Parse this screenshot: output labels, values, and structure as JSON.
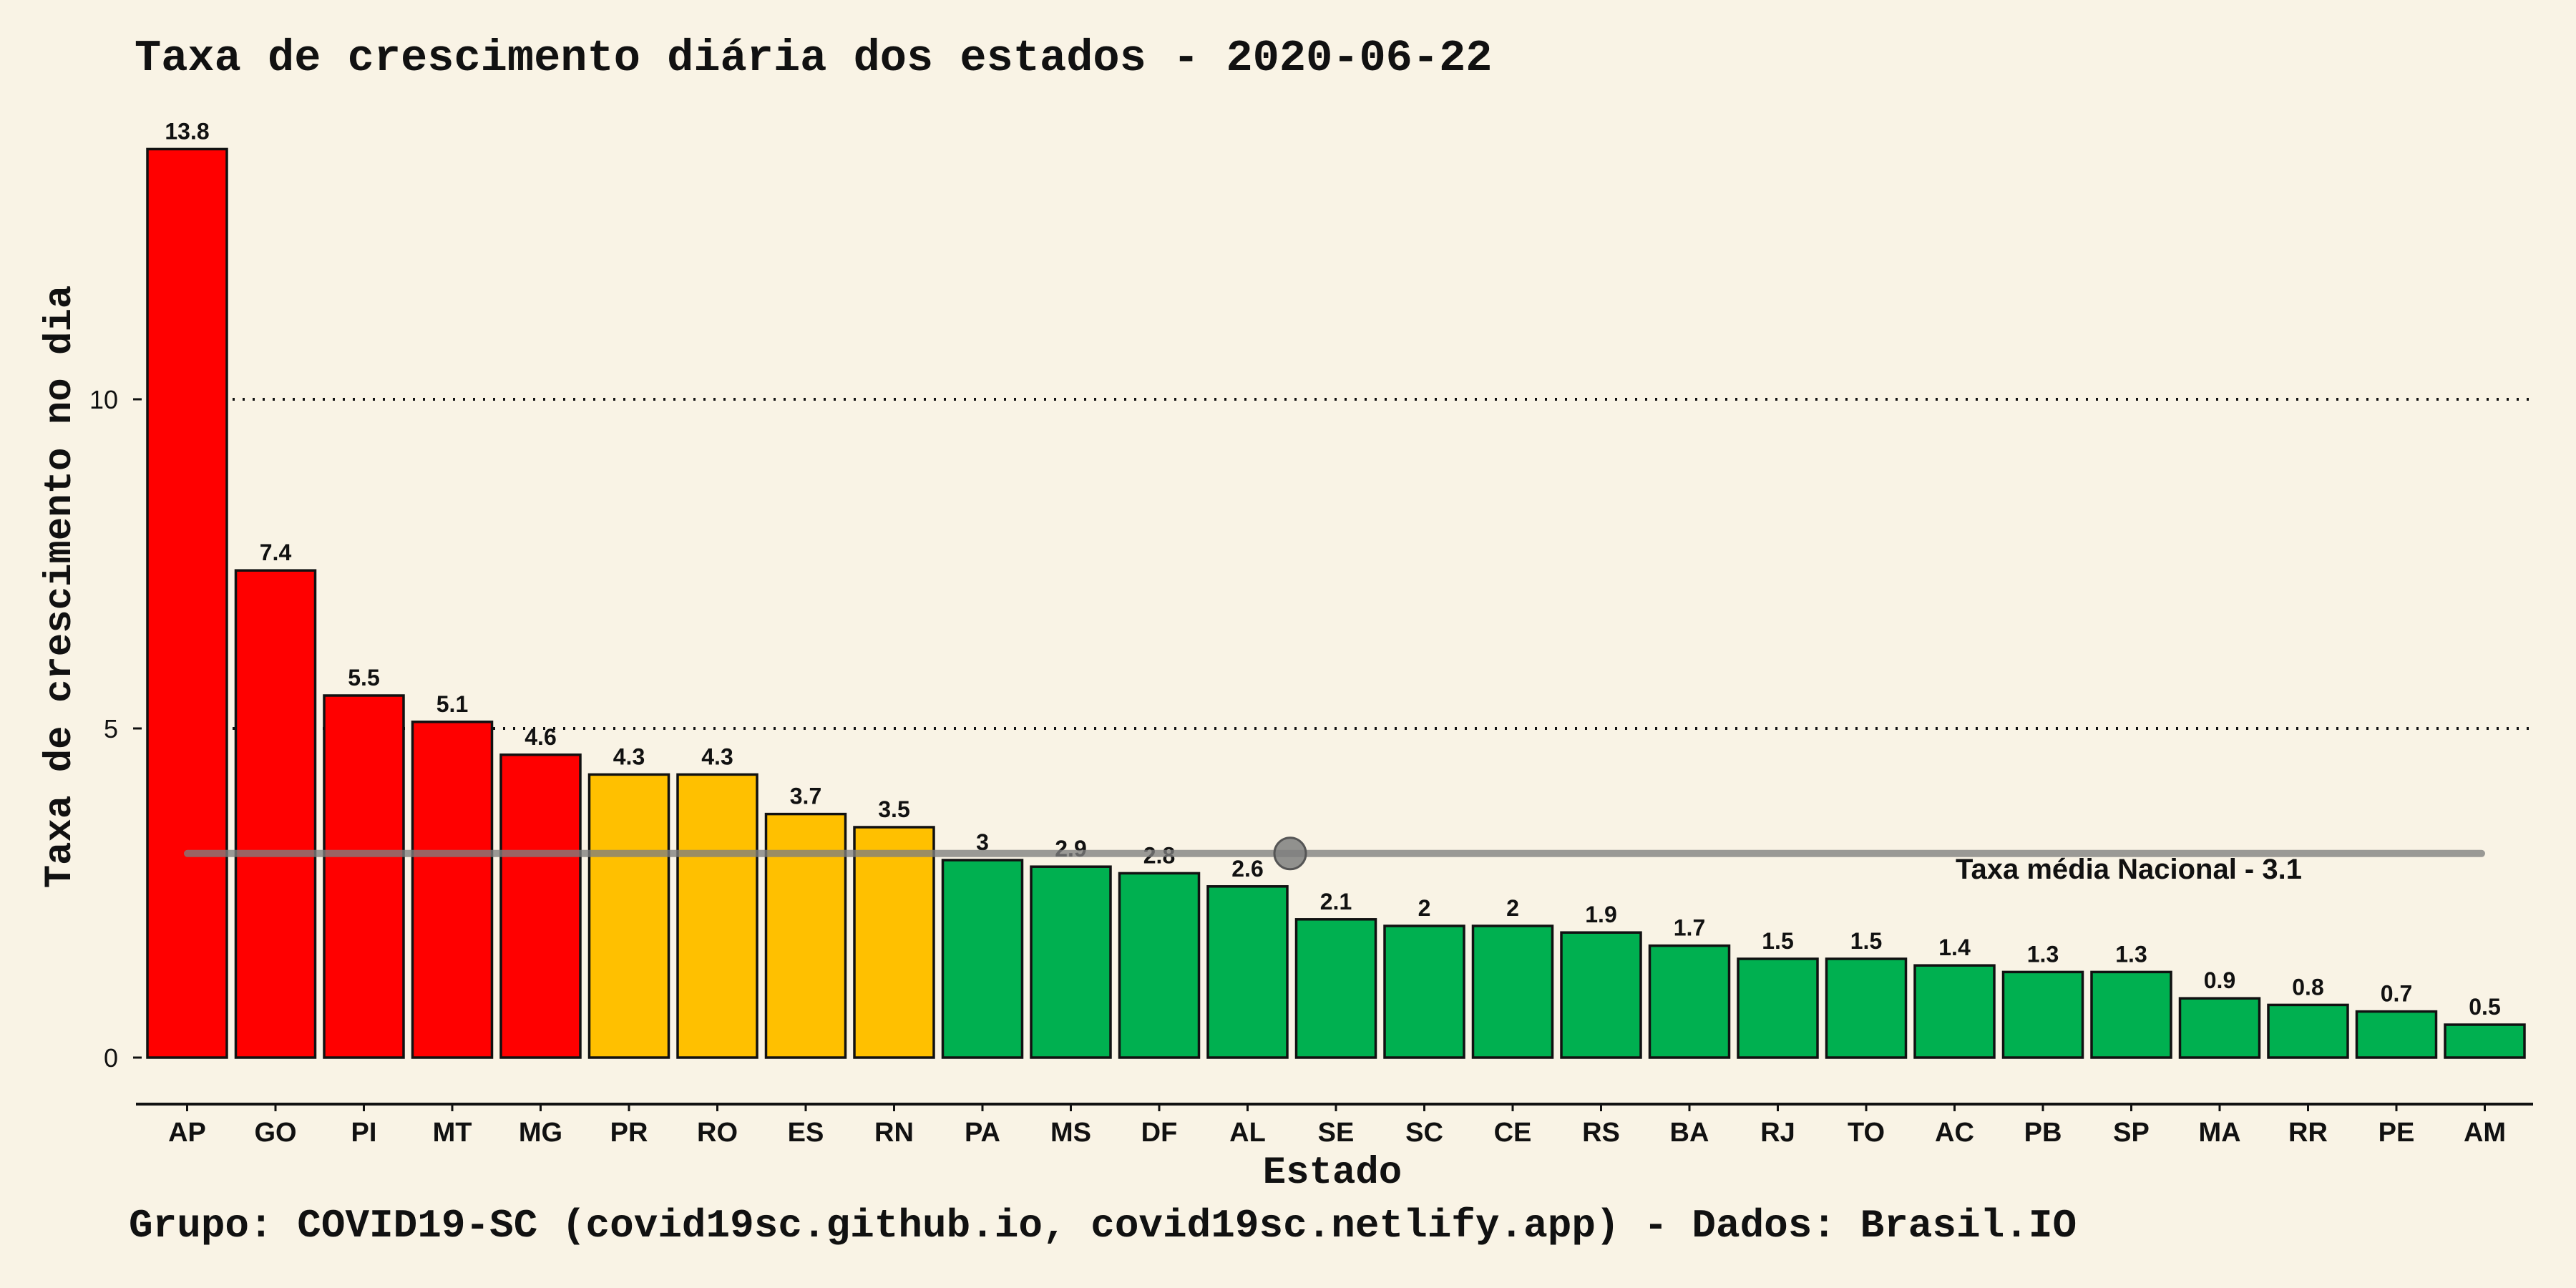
{
  "chart_data": {
    "type": "bar",
    "title": "Taxa de crescimento diária dos estados - 2020-06-22",
    "xlabel": "Estado",
    "ylabel": "Taxa de crescimento no dia",
    "ylim": [
      0,
      14
    ],
    "yticks": [
      0,
      5,
      10
    ],
    "grid": "horizontal-dotted",
    "categories": [
      "AP",
      "GO",
      "PI",
      "MT",
      "MG",
      "PR",
      "RO",
      "ES",
      "RN",
      "PA",
      "MS",
      "DF",
      "AL",
      "SE",
      "SC",
      "CE",
      "RS",
      "BA",
      "RJ",
      "TO",
      "AC",
      "PB",
      "SP",
      "MA",
      "RR",
      "PE",
      "AM"
    ],
    "values": [
      13.8,
      7.4,
      5.5,
      5.1,
      4.6,
      4.3,
      4.3,
      3.7,
      3.5,
      3.0,
      2.9,
      2.8,
      2.6,
      2.1,
      2.0,
      2.0,
      1.9,
      1.7,
      1.5,
      1.5,
      1.4,
      1.3,
      1.3,
      0.9,
      0.8,
      0.7,
      0.5
    ],
    "data_labels": [
      "13.8",
      "7.4",
      "5.5",
      "5.1",
      "4.6",
      "4.3",
      "4.3",
      "3.7",
      "3.5",
      "3",
      "2.9",
      "2.8",
      "2.6",
      "2.1",
      "2",
      "2",
      "1.9",
      "1.7",
      "1.5",
      "1.5",
      "1.4",
      "1.3",
      "1.3",
      "0.9",
      "0.8",
      "0.7",
      "0.5"
    ],
    "bar_colors": [
      "#ff0000",
      "#ff0000",
      "#ff0000",
      "#ff0000",
      "#ff0000",
      "#ffc000",
      "#ffc000",
      "#ffc000",
      "#ffc000",
      "#00b050",
      "#00b050",
      "#00b050",
      "#00b050",
      "#00b050",
      "#00b050",
      "#00b050",
      "#00b050",
      "#00b050",
      "#00b050",
      "#00b050",
      "#00b050",
      "#00b050",
      "#00b050",
      "#00b050",
      "#00b050",
      "#00b050",
      "#00b050"
    ],
    "reference_line": {
      "value": 3.1,
      "label": "Taxa média Nacional -  3.1",
      "color": "#7f7f7f"
    },
    "caption": "Grupo: COVID19-SC (covid19sc.github.io, covid19sc.netlify.app)   -  Dados: Brasil.IO"
  }
}
